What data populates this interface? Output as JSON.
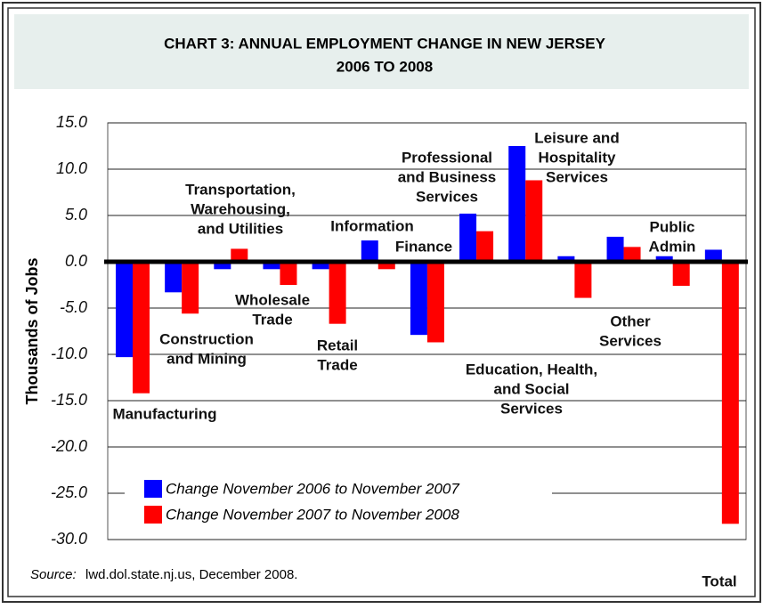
{
  "chart_data": {
    "type": "bar",
    "title": [
      "CHART 3: ANNUAL EMPLOYMENT CHANGE IN NEW JERSEY",
      "2006 TO 2008"
    ],
    "ylabel": "Thousands of Jobs",
    "categories": [
      [
        "Manufacturing"
      ],
      [
        "Construction",
        "and Mining"
      ],
      [
        "Transportation,",
        "Warehousing,",
        "and Utilities"
      ],
      [
        "Wholesale",
        "Trade"
      ],
      [
        "Retail",
        "Trade"
      ],
      [
        "Information"
      ],
      [
        "Finance"
      ],
      [
        "Professional",
        "and Business",
        "Services"
      ],
      [
        "Education, Health,",
        "and Social",
        "Services"
      ],
      [
        "Leisure and",
        "Hospitality",
        "Services"
      ],
      [
        "Other",
        "Services"
      ],
      [
        "Public",
        "Admin"
      ],
      [
        "Total"
      ]
    ],
    "series": [
      {
        "name": "Change November 2006 to November 2007",
        "color": "#0000ff",
        "values": [
          -10.3,
          -3.3,
          -0.8,
          -0.8,
          -0.8,
          2.3,
          -7.9,
          5.2,
          12.5,
          0.6,
          2.7,
          0.6,
          1.3
        ]
      },
      {
        "name": "Change November 2007 to November 2008",
        "color": "#ff0000",
        "values": [
          -14.2,
          -5.6,
          1.4,
          -2.5,
          -6.7,
          -0.8,
          -8.7,
          3.3,
          8.8,
          -3.9,
          1.6,
          -2.6,
          -28.3
        ]
      }
    ],
    "ylim": [
      -30,
      15
    ],
    "yticks": [
      {
        "value": -30,
        "label": "-30.0"
      },
      {
        "value": -25,
        "label": "-25.0"
      },
      {
        "value": -20,
        "label": "-20.0"
      },
      {
        "value": -15,
        "label": "-15.0"
      },
      {
        "value": -10,
        "label": "-10.0"
      },
      {
        "value": -5,
        "label": "-5.0"
      },
      {
        "value": 0,
        "label": "0.0"
      },
      {
        "value": 5,
        "label": "5.0"
      },
      {
        "value": 10,
        "label": "10.0"
      },
      {
        "value": 15,
        "label": "15.0"
      }
    ],
    "grid": true,
    "source": [
      "Source:",
      "lwd.dol.state.nj.us, December 2008."
    ]
  }
}
